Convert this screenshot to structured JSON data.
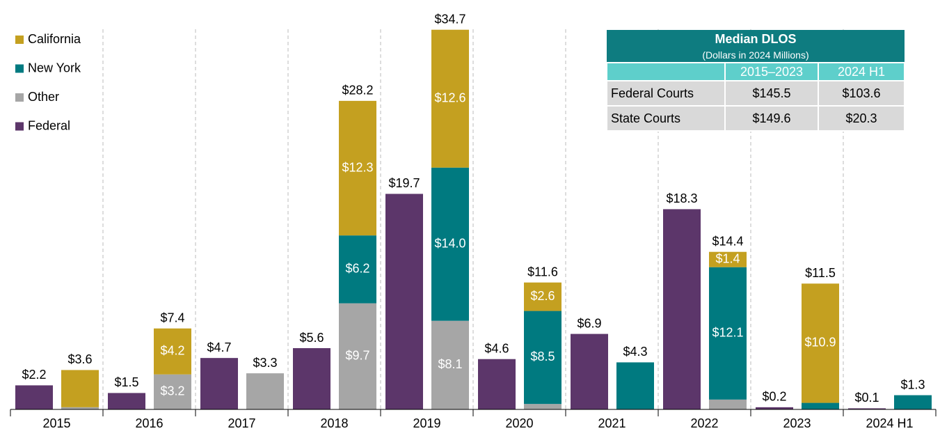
{
  "chart_data": {
    "type": "bar",
    "categories": [
      "2015",
      "2016",
      "2017",
      "2018",
      "2019",
      "2020",
      "2021",
      "2022",
      "2023",
      "2024 H1"
    ],
    "series": [
      {
        "name": "California",
        "color": "#c4a020",
        "values": [
          3.4,
          4.2,
          0,
          12.3,
          12.6,
          2.6,
          0,
          1.4,
          10.9,
          0
        ],
        "value_labels": [
          null,
          "$4.2",
          null,
          "$12.3",
          "$12.6",
          "$2.6",
          null,
          "$1.4",
          "$10.9",
          null
        ]
      },
      {
        "name": "New York",
        "color": "#007a80",
        "values": [
          0,
          0,
          0,
          6.2,
          14.0,
          8.5,
          4.3,
          12.1,
          0.6,
          1.3
        ],
        "value_labels": [
          null,
          null,
          null,
          "$6.2",
          "$14.0",
          "$8.5",
          null,
          "$12.1",
          null,
          null
        ]
      },
      {
        "name": "Other",
        "color": "#a6a6a6",
        "values": [
          0.2,
          3.2,
          3.3,
          9.7,
          8.1,
          0.5,
          0,
          0.9,
          0,
          0
        ],
        "value_labels": [
          null,
          "$3.2",
          null,
          "$9.7",
          "$8.1",
          null,
          null,
          null,
          null,
          null
        ]
      },
      {
        "name": "Federal",
        "color": "#5c366a",
        "values": [
          2.2,
          1.5,
          4.7,
          5.6,
          19.7,
          4.6,
          6.9,
          18.3,
          0.2,
          0.1
        ],
        "value_labels": [
          "$2.2",
          "$1.5",
          "$4.7",
          "$5.6",
          "$19.7",
          "$4.6",
          "$6.9",
          "$18.3",
          "$0.2",
          "$0.1"
        ]
      }
    ],
    "totals": [
      3.6,
      7.4,
      3.3,
      28.2,
      34.7,
      11.6,
      4.3,
      14.4,
      11.5,
      1.3
    ],
    "total_labels": [
      "$3.6",
      "$7.4",
      "$3.3",
      "$28.2",
      "$34.7",
      "$11.6",
      "$4.3",
      "$14.4",
      "$11.5",
      "$1.3"
    ],
    "ylim": [
      0,
      35
    ]
  },
  "table": {
    "title": "Median DLOS",
    "subtitle": "(Dollars in 2024 Millions)",
    "columns": [
      "2015–2023",
      "2024 H1"
    ],
    "rows": [
      {
        "label": "Federal Courts",
        "values": [
          "$145.5",
          "$103.6"
        ]
      },
      {
        "label": "State Courts",
        "values": [
          "$149.6",
          "$20.3"
        ]
      }
    ]
  }
}
